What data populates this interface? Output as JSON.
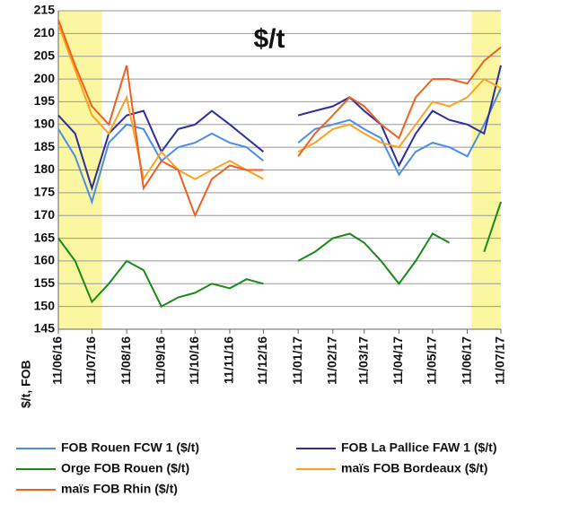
{
  "chart_data": {
    "type": "line",
    "title": "$/t",
    "y_label": "$/t, FOB",
    "x": [
      "11/06/16",
      "26/06/16",
      "11/07/16",
      "26/07/16",
      "11/08/16",
      "26/08/16",
      "11/09/16",
      "26/09/16",
      "11/10/16",
      "26/10/16",
      "11/11/16",
      "26/11/16",
      "11/12/16",
      "26/12/16",
      "11/01/17",
      "26/01/17",
      "11/02/17",
      "26/02/17",
      "11/03/17",
      "26/03/17",
      "11/04/17",
      "26/04/17",
      "11/05/17",
      "26/05/17",
      "11/06/17",
      "26/06/17",
      "11/07/17"
    ],
    "xlim": [
      "11/06/16",
      "11/07/17"
    ],
    "xticks": [
      "11/06/16",
      "11/07/16",
      "11/08/16",
      "11/09/16",
      "11/10/16",
      "11/11/16",
      "11/12/16",
      "11/01/17",
      "11/02/17",
      "11/03/17",
      "11/04/17",
      "11/05/17",
      "11/06/17",
      "11/07/17"
    ],
    "ylim": [
      145,
      215
    ],
    "yticks": [
      145,
      150,
      155,
      160,
      165,
      170,
      175,
      180,
      185,
      190,
      195,
      200,
      205,
      210,
      215
    ],
    "grid": true,
    "highlight_ranges": [
      [
        "11/06/16",
        "20/07/16"
      ],
      [
        "15/06/17",
        "11/07/17"
      ]
    ],
    "highlight_color": "#fbf7a0",
    "series": [
      {
        "name": "FOB Rouen FCW 1 ($/t)",
        "color": "#4a8ee8",
        "values": [
          189,
          183,
          173,
          186,
          190,
          189,
          182,
          185,
          186,
          188,
          186,
          185,
          182,
          null,
          186,
          189,
          190,
          191,
          189,
          187,
          179,
          184,
          186,
          185,
          183,
          190,
          198
        ]
      },
      {
        "name": "FOB La Pallice FAW 1 ($/t)",
        "color": "#2e2e9e",
        "values": [
          192,
          188,
          176,
          188,
          192,
          193,
          184,
          189,
          190,
          193,
          190,
          187,
          184,
          null,
          192,
          193,
          194,
          196,
          193,
          190,
          181,
          188,
          193,
          191,
          190,
          188,
          203
        ]
      },
      {
        "name": "Orge FOB Rouen ($/t)",
        "color": "#1a8a1a",
        "values": [
          165,
          160,
          151,
          155,
          160,
          158,
          150,
          152,
          153,
          155,
          154,
          156,
          155,
          null,
          160,
          162,
          165,
          166,
          164,
          160,
          155,
          160,
          166,
          164,
          null,
          162,
          173
        ]
      },
      {
        "name": "maïs FOB Bordeaux ($/t)",
        "color": "#ffa020",
        "values": [
          212,
          202,
          192,
          188,
          196,
          178,
          184,
          180,
          178,
          180,
          182,
          180,
          178,
          null,
          184,
          186,
          189,
          190,
          188,
          186,
          185,
          190,
          195,
          194,
          196,
          200,
          198
        ]
      },
      {
        "name": "maïs FOB Rhin ($/t)",
        "color": "#f06020",
        "values": [
          213,
          203,
          194,
          190,
          203,
          176,
          182,
          180,
          170,
          178,
          181,
          180,
          180,
          null,
          183,
          188,
          192,
          196,
          194,
          190,
          187,
          196,
          200,
          200,
          199,
          204,
          207
        ]
      }
    ]
  }
}
